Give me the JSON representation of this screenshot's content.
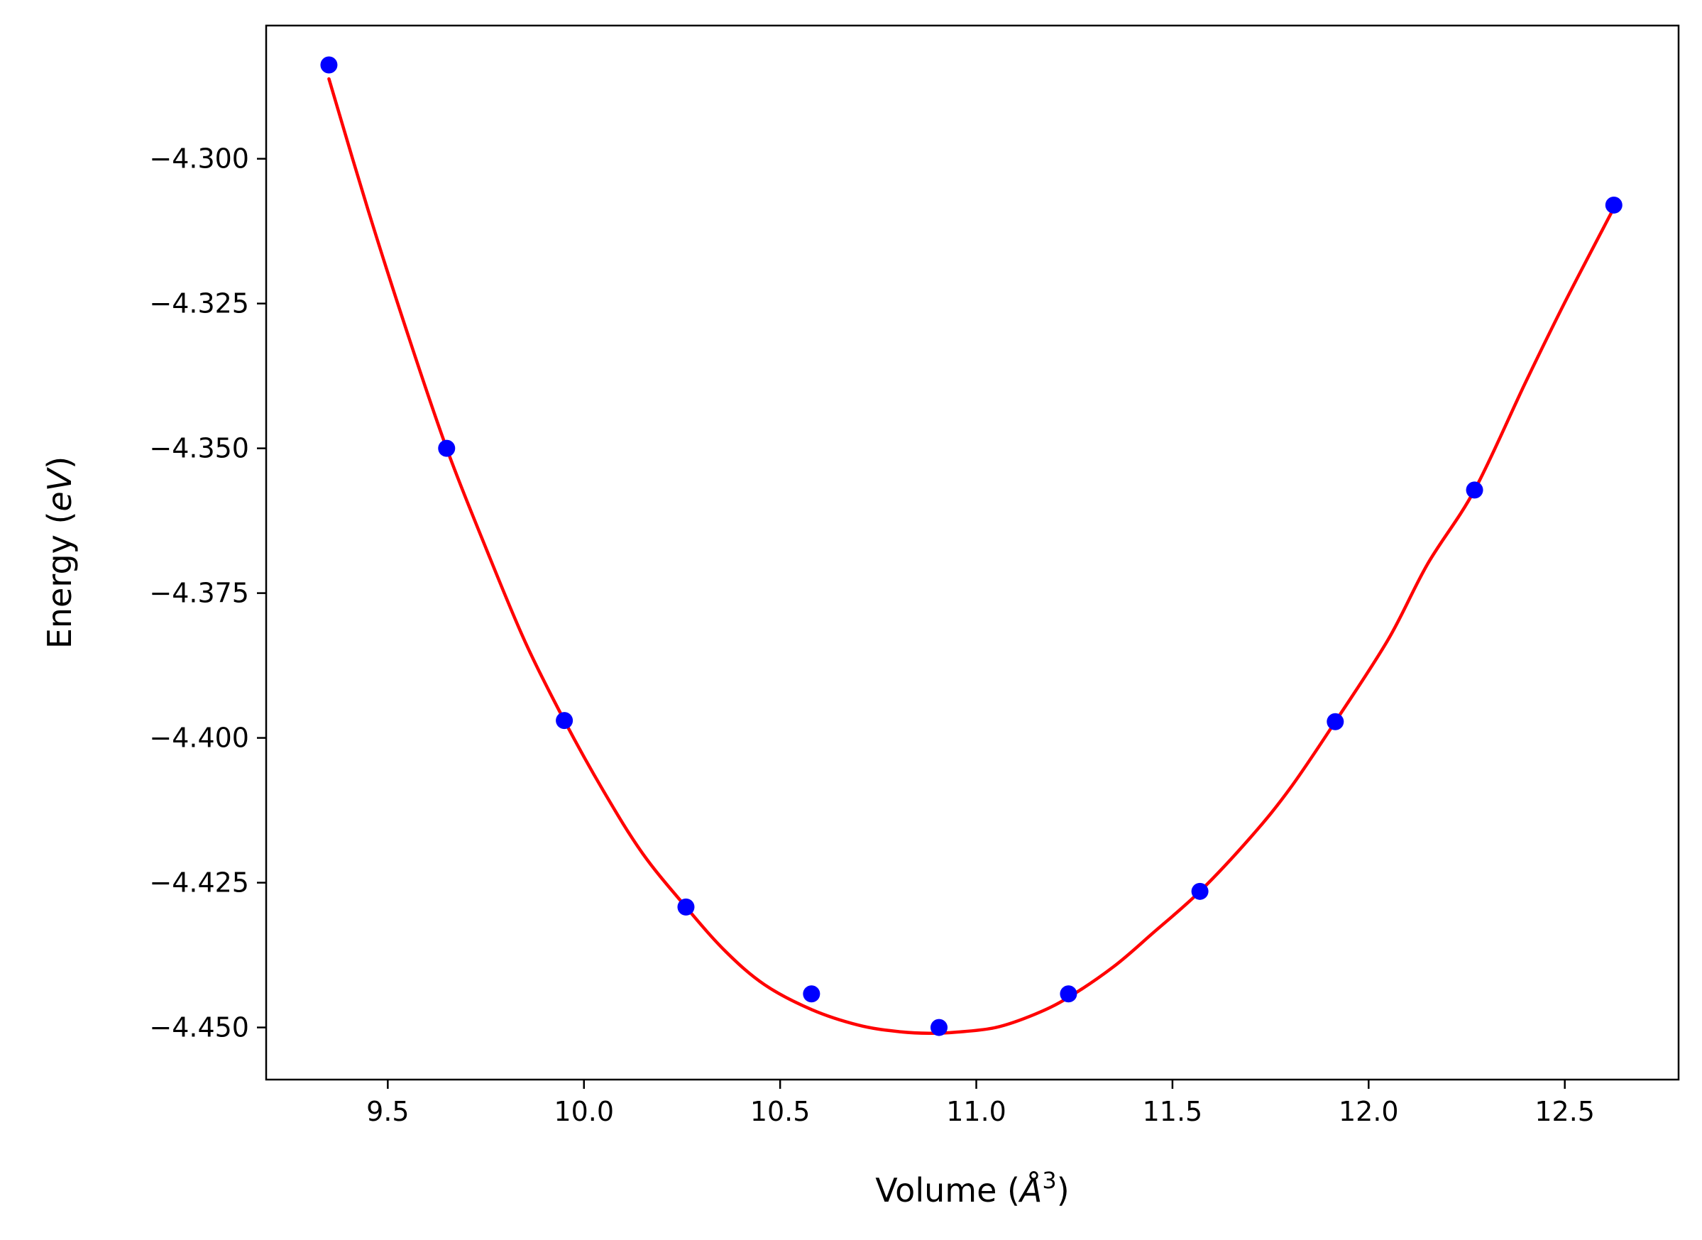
{
  "chart_data": {
    "type": "scatter",
    "title": "",
    "xlabel": "Volume (Å³)",
    "ylabel": "Energy (eV)",
    "xlabel_parts": {
      "prefix": "Volume (",
      "symbol": "Å",
      "sup": "3",
      "suffix": ")"
    },
    "ylabel_parts": {
      "prefix": "Energy (",
      "symbol": "eV",
      "suffix": ")"
    },
    "xlim": [
      9.19,
      12.79
    ],
    "ylim": [
      -4.459,
      -4.277
    ],
    "xticks": [
      9.5,
      10.0,
      10.5,
      11.0,
      11.5,
      12.0,
      12.5
    ],
    "xtick_labels": [
      "9.5",
      "10.0",
      "10.5",
      "11.0",
      "11.5",
      "12.0",
      "12.5"
    ],
    "yticks": [
      -4.3,
      -4.325,
      -4.35,
      -4.375,
      -4.4,
      -4.425,
      -4.45
    ],
    "ytick_labels": [
      "−4.300",
      "−4.325",
      "−4.350",
      "−4.375",
      "−4.400",
      "−4.425",
      "−4.450"
    ],
    "grid": false,
    "series": [
      {
        "kind": "points",
        "color": "#0000ff",
        "x": [
          9.35,
          9.65,
          9.95,
          10.26,
          10.58,
          10.905,
          11.235,
          11.57,
          11.915,
          12.27,
          12.625
        ],
        "y": [
          -4.2838,
          -4.35,
          -4.397,
          -4.4292,
          -4.4442,
          -4.45,
          -4.4442,
          -4.4265,
          -4.3972,
          -4.3572,
          -4.308
        ]
      },
      {
        "kind": "fit-curve",
        "color": "#ff0000",
        "x": [
          9.35,
          9.45,
          9.55,
          9.65,
          9.75,
          9.85,
          9.95,
          10.05,
          10.15,
          10.26,
          10.36,
          10.46,
          10.58,
          10.7,
          10.8,
          10.88,
          10.95,
          11.05,
          11.15,
          11.235,
          11.35,
          11.45,
          11.57,
          11.7,
          11.8,
          11.915,
          12.05,
          12.15,
          12.27,
          12.4,
          12.5,
          12.625
        ],
        "y": [
          -4.2862,
          -4.3089,
          -4.3301,
          -4.35,
          -4.3672,
          -4.3834,
          -4.397,
          -4.4092,
          -4.42,
          -4.4292,
          -4.4368,
          -4.4426,
          -4.4469,
          -4.4496,
          -4.4507,
          -4.451,
          -4.4508,
          -4.45,
          -4.4477,
          -4.4448,
          -4.4395,
          -4.4337,
          -4.4265,
          -4.4171,
          -4.4087,
          -4.3972,
          -4.383,
          -4.37,
          -4.3572,
          -4.3386,
          -4.3248,
          -4.3085
        ]
      }
    ]
  }
}
